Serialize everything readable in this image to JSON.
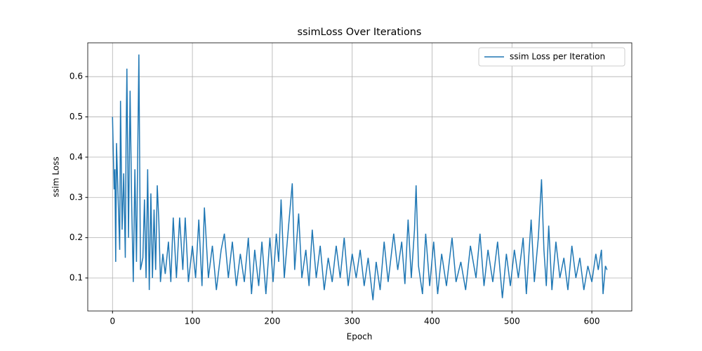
{
  "chart_data": {
    "type": "line",
    "title": "ssimLoss Over Iterations",
    "x_label": "Epoch",
    "y_label": "ssim Loss",
    "x": [
      0,
      2,
      3,
      4,
      5,
      7,
      9,
      10,
      12,
      14,
      16,
      17,
      18,
      20,
      22,
      24,
      26,
      28,
      30,
      33,
      35,
      38,
      40,
      42,
      44,
      46,
      48,
      50,
      52,
      54,
      56,
      58,
      60,
      63,
      66,
      70,
      73,
      76,
      80,
      84,
      88,
      91,
      95,
      100,
      104,
      108,
      112,
      115,
      120,
      125,
      130,
      136,
      140,
      145,
      150,
      155,
      160,
      165,
      170,
      174,
      178,
      183,
      187,
      192,
      197,
      201,
      205,
      208,
      211,
      215,
      220,
      225,
      228,
      233,
      237,
      242,
      246,
      250,
      255,
      260,
      265,
      270,
      275,
      280,
      285,
      290,
      295,
      300,
      305,
      310,
      315,
      320,
      326,
      330,
      335,
      340,
      345,
      352,
      357,
      362,
      366,
      370,
      374,
      378,
      380,
      383,
      388,
      392,
      397,
      402,
      407,
      412,
      418,
      425,
      430,
      436,
      442,
      448,
      455,
      460,
      465,
      470,
      476,
      482,
      488,
      493,
      498,
      503,
      508,
      514,
      518,
      524,
      528,
      533,
      537,
      540,
      543,
      546,
      550,
      555,
      560,
      565,
      570,
      575,
      580,
      585,
      590,
      595,
      600,
      605,
      608,
      612,
      614,
      617,
      619
    ],
    "series": [
      {
        "name": "ssim Loss per Iteration",
        "color": "#1f77b4",
        "values": [
          0.5,
          0.32,
          0.37,
          0.14,
          0.435,
          0.3,
          0.17,
          0.54,
          0.22,
          0.36,
          0.15,
          0.44,
          0.62,
          0.2,
          0.565,
          0.28,
          0.09,
          0.37,
          0.14,
          0.655,
          0.12,
          0.15,
          0.295,
          0.1,
          0.37,
          0.07,
          0.31,
          0.1,
          0.27,
          0.12,
          0.33,
          0.24,
          0.09,
          0.16,
          0.11,
          0.19,
          0.09,
          0.25,
          0.1,
          0.25,
          0.12,
          0.25,
          0.09,
          0.18,
          0.1,
          0.245,
          0.08,
          0.275,
          0.1,
          0.18,
          0.07,
          0.17,
          0.21,
          0.1,
          0.19,
          0.08,
          0.16,
          0.09,
          0.2,
          0.06,
          0.17,
          0.08,
          0.19,
          0.06,
          0.2,
          0.09,
          0.21,
          0.14,
          0.295,
          0.1,
          0.22,
          0.335,
          0.12,
          0.26,
          0.1,
          0.17,
          0.08,
          0.22,
          0.1,
          0.18,
          0.07,
          0.15,
          0.09,
          0.18,
          0.1,
          0.2,
          0.08,
          0.16,
          0.1,
          0.17,
          0.08,
          0.15,
          0.045,
          0.14,
          0.07,
          0.19,
          0.09,
          0.21,
          0.12,
          0.19,
          0.085,
          0.245,
          0.1,
          0.22,
          0.33,
          0.13,
          0.06,
          0.21,
          0.08,
          0.19,
          0.06,
          0.16,
          0.08,
          0.2,
          0.09,
          0.14,
          0.07,
          0.18,
          0.1,
          0.21,
          0.08,
          0.17,
          0.09,
          0.19,
          0.05,
          0.16,
          0.08,
          0.17,
          0.1,
          0.2,
          0.06,
          0.245,
          0.09,
          0.2,
          0.345,
          0.17,
          0.08,
          0.23,
          0.07,
          0.19,
          0.1,
          0.15,
          0.07,
          0.18,
          0.1,
          0.15,
          0.07,
          0.13,
          0.09,
          0.16,
          0.12,
          0.17,
          0.06,
          0.13,
          0.12
        ]
      }
    ],
    "xlim": [
      -31,
      650
    ],
    "ylim": [
      0.018,
      0.684
    ],
    "xticks": [
      0,
      100,
      200,
      300,
      400,
      500,
      600
    ],
    "yticks": [
      0.1,
      0.2,
      0.3,
      0.4,
      0.5,
      0.6
    ],
    "grid": true,
    "legend": "upper right"
  }
}
